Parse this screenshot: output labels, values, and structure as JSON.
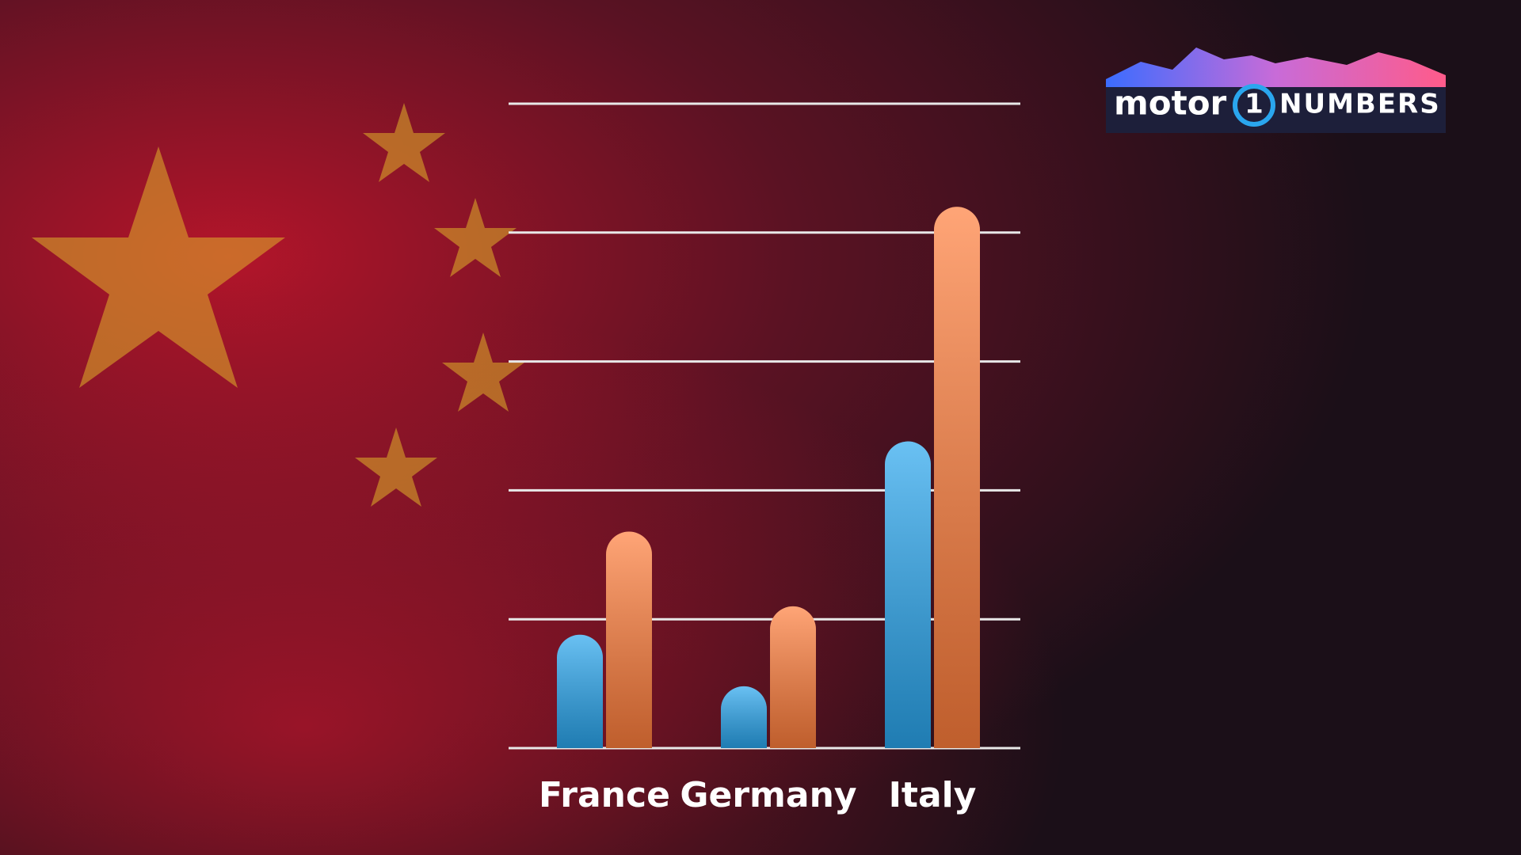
{
  "chart_data": {
    "type": "bar",
    "categories": [
      "France",
      "Germany",
      "Italy"
    ],
    "series": [
      {
        "color": "#2aa6ee",
        "values": [
          0.88,
          0.48,
          2.38
        ]
      },
      {
        "color": "#ff7e3c",
        "values": [
          1.68,
          1.1,
          4.2
        ]
      }
    ],
    "ylim": [
      0,
      5
    ],
    "yticks": [
      0,
      1,
      2,
      3,
      4,
      5
    ],
    "grid": true
  },
  "logo": {
    "left": "motor",
    "mark": "1",
    "right": "NUMBERS"
  }
}
